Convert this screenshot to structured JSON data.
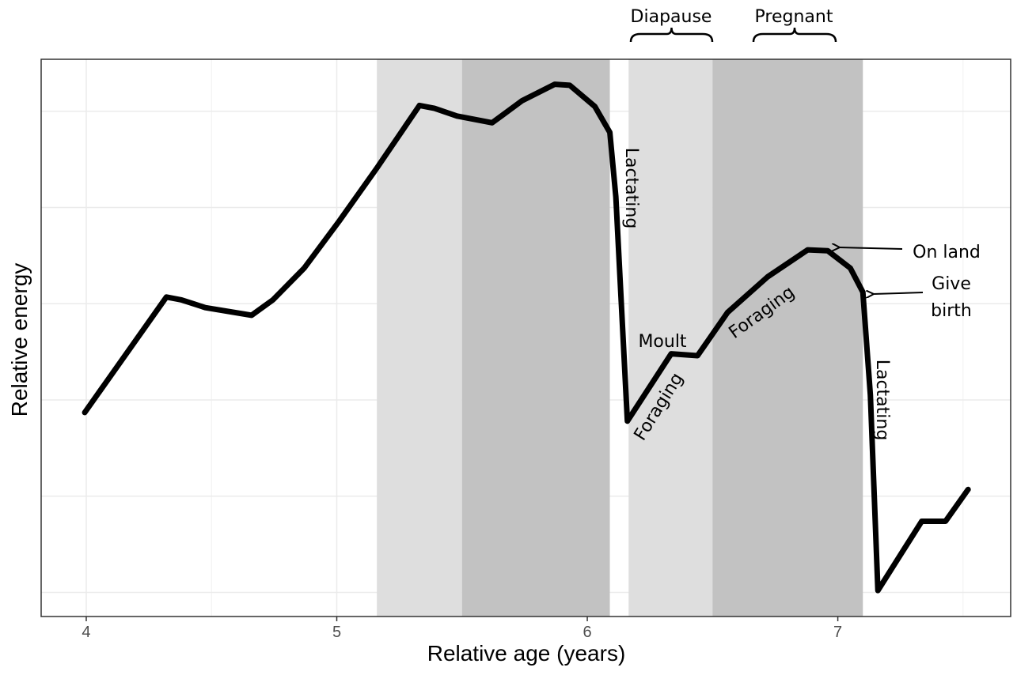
{
  "chart_data": {
    "type": "line",
    "x_label": "Relative age (years)",
    "y_label": "Relative energy",
    "xlim": [
      3.82,
      7.69
    ],
    "xticks": [
      4,
      5,
      6,
      7
    ],
    "xgrid_minor": [
      4.5,
      5.5,
      6.5,
      7.5
    ],
    "ylim": [
      0.75,
      6.54
    ],
    "ygrid": [
      1,
      2,
      3,
      4,
      5,
      6
    ],
    "grid": true,
    "shaded_regions": [
      {
        "xmin": 5.16,
        "xmax": 5.5,
        "color": "#dedede"
      },
      {
        "xmin": 5.5,
        "xmax": 6.09,
        "color": "#c2c2c2"
      },
      {
        "xmin": 6.165,
        "xmax": 6.5,
        "color": "#dedede"
      },
      {
        "xmin": 6.5,
        "xmax": 7.1,
        "color": "#c2c2c2"
      }
    ],
    "series": [
      {
        "color": "#000000",
        "x": [
          3.994,
          4.32,
          4.38,
          4.475,
          4.66,
          4.745,
          4.87,
          5.01,
          5.16,
          5.33,
          5.39,
          5.48,
          5.62,
          5.74,
          5.87,
          5.93,
          6.03,
          6.09,
          6.114,
          6.16,
          6.335,
          6.44,
          6.56,
          6.72,
          6.88,
          6.96,
          7.05,
          7.1,
          7.13,
          7.16,
          7.335,
          7.43,
          7.52
        ],
        "values": [
          2.87,
          4.07,
          4.04,
          3.96,
          3.88,
          4.04,
          4.37,
          4.86,
          5.41,
          6.06,
          6.03,
          5.95,
          5.88,
          6.11,
          6.28,
          6.27,
          6.05,
          5.78,
          5.11,
          2.78,
          3.48,
          3.46,
          3.91,
          4.28,
          4.56,
          4.55,
          4.37,
          4.12,
          3.05,
          1.02,
          1.74,
          1.74,
          2.07
        ]
      }
    ],
    "annotations": [
      "Diapause",
      "Pregnant",
      "Lactating",
      "Moult",
      "Foraging",
      "Foraging",
      "On land",
      "Give birth",
      "Lactating"
    ]
  }
}
